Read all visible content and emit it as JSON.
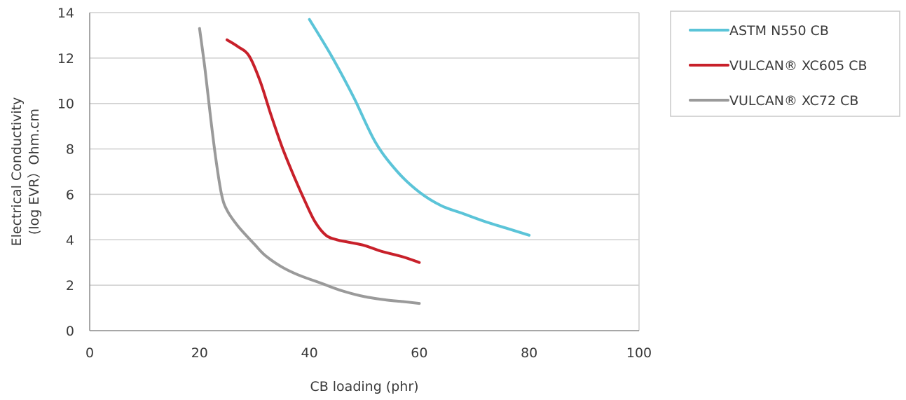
{
  "chart_data": {
    "type": "line",
    "title": "",
    "xlabel": "CB loading (phr)",
    "ylabel_lines": [
      "Electrical Conductivity",
      "(log EVR）Ohm.cm"
    ],
    "xlim": [
      0,
      100
    ],
    "ylim": [
      0,
      14
    ],
    "xticks": [
      0,
      20,
      40,
      60,
      80,
      100
    ],
    "yticks": [
      0,
      2,
      4,
      6,
      8,
      10,
      12,
      14
    ],
    "grid": "horizontal",
    "legend_position": "right",
    "series": [
      {
        "name": "ASTM N550 CB",
        "color": "#5bc4d8",
        "points": [
          [
            40,
            13.7
          ],
          [
            44,
            12.1
          ],
          [
            48,
            10.3
          ],
          [
            52,
            8.3
          ],
          [
            56,
            7.0
          ],
          [
            60,
            6.1
          ],
          [
            64,
            5.5
          ],
          [
            68,
            5.15
          ],
          [
            72,
            4.8
          ],
          [
            76,
            4.5
          ],
          [
            80,
            4.2
          ]
        ]
      },
      {
        "name": "VULCAN® XC605 CB",
        "color": "#c8202a",
        "points": [
          [
            25,
            12.8
          ],
          [
            27,
            12.5
          ],
          [
            29,
            12.1
          ],
          [
            31,
            11.0
          ],
          [
            33,
            9.5
          ],
          [
            35,
            8.1
          ],
          [
            37,
            6.9
          ],
          [
            39,
            5.8
          ],
          [
            41,
            4.8
          ],
          [
            43,
            4.2
          ],
          [
            45,
            4.0
          ],
          [
            47,
            3.9
          ],
          [
            50,
            3.75
          ],
          [
            53,
            3.5
          ],
          [
            57,
            3.25
          ],
          [
            60,
            3.0
          ]
        ]
      },
      {
        "name": "VULCAN® XC72 CB",
        "color": "#9a9a9a",
        "points": [
          [
            20,
            13.3
          ],
          [
            21,
            11.5
          ],
          [
            22,
            9.4
          ],
          [
            23,
            7.5
          ],
          [
            24,
            6.0
          ],
          [
            25,
            5.3
          ],
          [
            27,
            4.6
          ],
          [
            30,
            3.8
          ],
          [
            32,
            3.3
          ],
          [
            35,
            2.8
          ],
          [
            38,
            2.45
          ],
          [
            42,
            2.1
          ],
          [
            46,
            1.75
          ],
          [
            50,
            1.5
          ],
          [
            54,
            1.35
          ],
          [
            57,
            1.28
          ],
          [
            60,
            1.2
          ]
        ]
      }
    ]
  }
}
